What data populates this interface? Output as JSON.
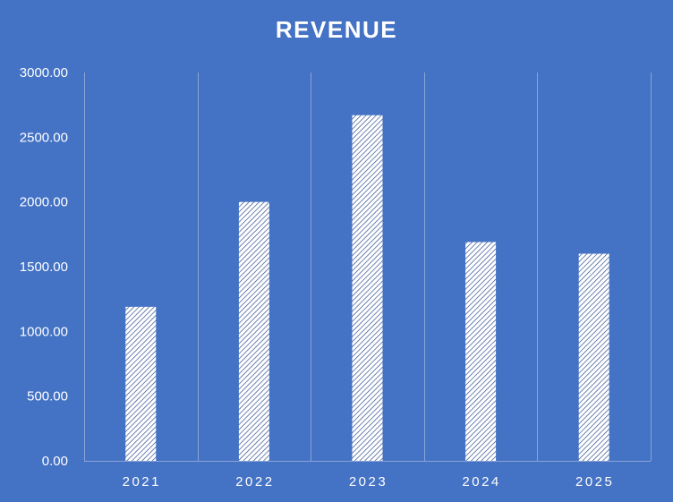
{
  "chart_data": {
    "type": "bar",
    "title": "REVENUE",
    "xlabel": "",
    "ylabel": "",
    "categories": [
      "2021",
      "2022",
      "2023",
      "2024",
      "2025"
    ],
    "values": [
      1190,
      2000,
      2670,
      1690,
      1600
    ],
    "ylim": [
      0,
      3000
    ],
    "yticks": [
      "0.00",
      "500.00",
      "1000.00",
      "1500.00",
      "2000.00",
      "2500.00",
      "3000.00"
    ],
    "ytick_values": [
      0,
      500,
      1000,
      1500,
      2000,
      2500,
      3000
    ],
    "grid": "vertical category separators",
    "legend": "none",
    "colors": {
      "background": "#4472c4",
      "bar_fill": "#ffffff",
      "bar_pattern": "#2f4f8f",
      "text": "#ffffff",
      "gridline": "#8aa4d6"
    }
  }
}
